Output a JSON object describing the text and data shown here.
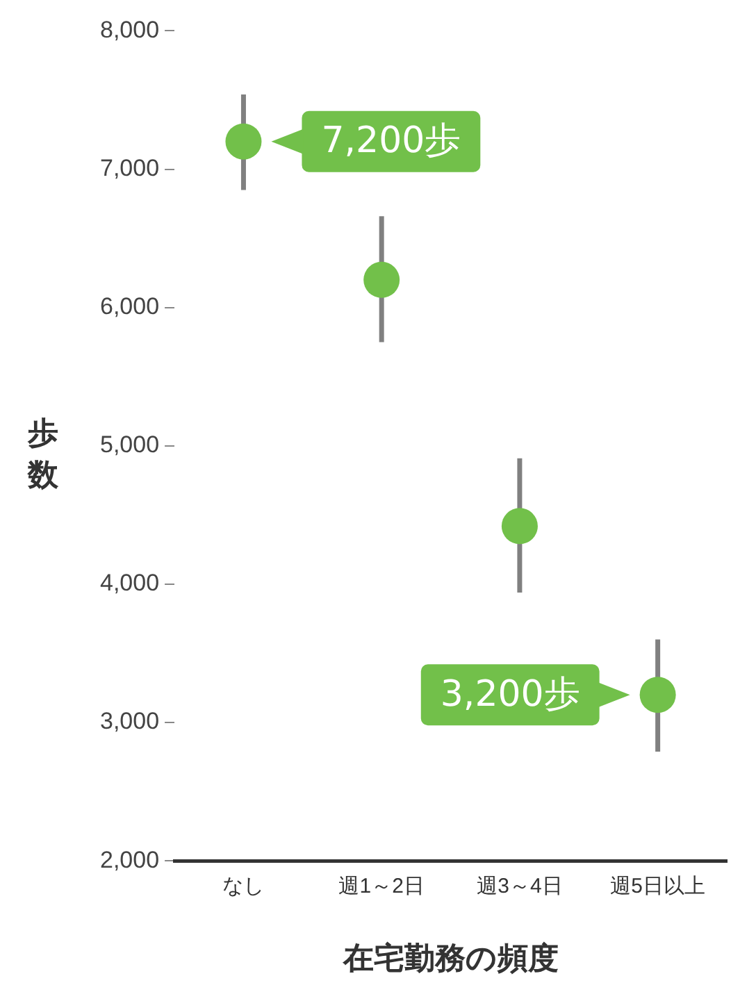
{
  "chart_data": {
    "type": "scatter",
    "xlabel": "在宅勤務の頻度",
    "ylabel": "歩数",
    "categories": [
      "なし",
      "週1～2日",
      "週3～4日",
      "週5日以上"
    ],
    "series": [
      {
        "color": "#72c04a",
        "values": [
          7200,
          6200,
          4420,
          3200
        ],
        "errors": [
          [
            6850,
            7540
          ],
          [
            5750,
            6660
          ],
          [
            3940,
            4910
          ],
          [
            2790,
            3600
          ]
        ]
      }
    ],
    "ylim": [
      2000,
      8000
    ],
    "yticks": [
      {
        "value": 2000,
        "label": "2,000"
      },
      {
        "value": 3000,
        "label": "3,000"
      },
      {
        "value": 4000,
        "label": "4,000"
      },
      {
        "value": 5000,
        "label": "5,000"
      },
      {
        "value": 6000,
        "label": "6,000"
      },
      {
        "value": 7000,
        "label": "7,000"
      },
      {
        "value": 8000,
        "label": "8,000"
      }
    ],
    "marker": "circle",
    "grid": false,
    "legend": false,
    "annotations": [
      {
        "text": "7,200歩",
        "x": "なし",
        "y": 7200
      },
      {
        "text": "3,200歩",
        "x": "週5日以上",
        "y": 3200
      }
    ]
  }
}
